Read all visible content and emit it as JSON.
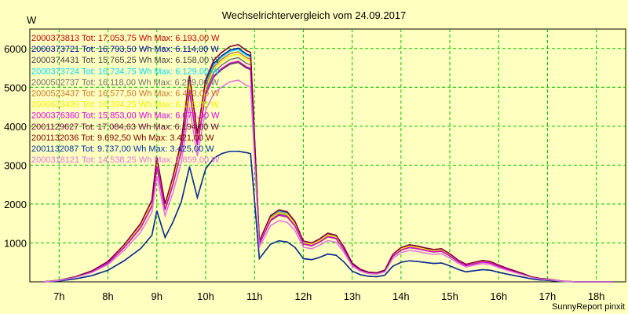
{
  "chart_data": {
    "type": "line",
    "title": "Wechselrichtervergleich vom 24.09.2017",
    "ylabel": "W",
    "footer": "SunnyReport pinxit",
    "ylim": [
      0,
      6500
    ],
    "xlim": [
      6.4,
      18.6
    ],
    "yticks": [
      1000,
      2000,
      3000,
      4000,
      5000,
      6000
    ],
    "xticks": [
      7,
      8,
      9,
      10,
      11,
      12,
      13,
      14,
      15,
      16,
      17,
      18
    ],
    "xtick_labels": [
      "7h",
      "8h",
      "9h",
      "10h",
      "11h",
      "12h",
      "13h",
      "14h",
      "15h",
      "16h",
      "17h",
      "18h"
    ],
    "grid": true,
    "legend_position": "top-left",
    "x": [
      6.67,
      7.0,
      7.33,
      7.67,
      8.0,
      8.33,
      8.67,
      8.9,
      9.0,
      9.17,
      9.33,
      9.5,
      9.67,
      9.83,
      10.0,
      10.17,
      10.33,
      10.5,
      10.67,
      10.83,
      10.92,
      11.1,
      11.33,
      11.5,
      11.67,
      11.83,
      12.0,
      12.17,
      12.33,
      12.5,
      12.67,
      12.83,
      13.0,
      13.17,
      13.33,
      13.5,
      13.67,
      13.83,
      14.0,
      14.17,
      14.33,
      14.5,
      14.67,
      14.83,
      15.0,
      15.17,
      15.33,
      15.5,
      15.67,
      15.83,
      16.0,
      16.17,
      16.33,
      16.5,
      16.67,
      16.83,
      17.0,
      17.17,
      17.33,
      17.5,
      17.67,
      17.83,
      18.0,
      18.33
    ],
    "series": [
      {
        "name": "2000373813 Tot: 17.053,75 Wh Max: 6.193,00 W",
        "color": "#c00000",
        "peak": 6193,
        "bright": 1.0
      },
      {
        "name": "2000373721 Tot: 16.793,50 Wh Max: 6.114,00 W",
        "color": "#0000a0",
        "peak": 6114,
        "bright": 0.985
      },
      {
        "name": "2000374431 Tot: 15.765,25 Wh Max: 6.158,00 W",
        "color": "#404040",
        "peak": 6158,
        "bright": 0.925
      },
      {
        "name": "2000373724 Tot: 16.734,75 Wh Max: 6.129,00 W",
        "color": "#00d8ff",
        "peak": 6129,
        "bright": 0.98
      },
      {
        "name": "2000502737 Tot: 16.118,00 Wh Max: 6.259,00 W",
        "color": "#707070",
        "peak": 6259,
        "bright": 0.945
      },
      {
        "name": "2000523437 Tot: 16.577,50 Wh Max: 6.443,00 W",
        "color": "#c87830",
        "peak": 6443,
        "bright": 0.97
      },
      {
        "name": "2000623439 Tot: 16.394,25 Wh Max: 6.116,00 W",
        "color": "#f0f000",
        "peak": 6116,
        "bright": 0.96
      },
      {
        "name": "2000376360 Tot: 15.853,00 Wh Max: 6.073,00 W",
        "color": "#e000e0",
        "peak": 6073,
        "bright": 0.93
      },
      {
        "name": "2001129627 Tot: 17.084,63 Wh Max: 6.194,00 W",
        "color": "#800040",
        "peak": 6194,
        "bright": 1.0
      },
      {
        "name": "2001132036 Tot: 9.692,50 Wh Max: 3.421,00 W",
        "color": "#800000",
        "peak": 3421,
        "bright": 0.57
      },
      {
        "name": "2001132087 Tot: 9.737,00 Wh Max: 3.425,00 W",
        "color": "#0030a0",
        "peak": 3425,
        "bright": 0.57
      },
      {
        "name": "2000318121 Tot: 14.538,25 Wh Max: 5.859,00 W",
        "color": "#e070e0",
        "peak": 5859,
        "bright": 0.85
      }
    ],
    "profile": [
      0,
      40,
      130,
      280,
      520,
      950,
      1500,
      2100,
      3200,
      2000,
      2700,
      3600,
      5300,
      3800,
      5200,
      5700,
      5900,
      6050,
      6100,
      5950,
      5900,
      1050,
      1700,
      1850,
      1800,
      1550,
      1050,
      1000,
      1100,
      1250,
      1200,
      900,
      480,
      320,
      250,
      230,
      300,
      700,
      880,
      950,
      920,
      870,
      830,
      850,
      720,
      560,
      450,
      500,
      550,
      520,
      430,
      350,
      280,
      210,
      130,
      90,
      70,
      40,
      15,
      5,
      0,
      0,
      0,
      0
    ]
  }
}
